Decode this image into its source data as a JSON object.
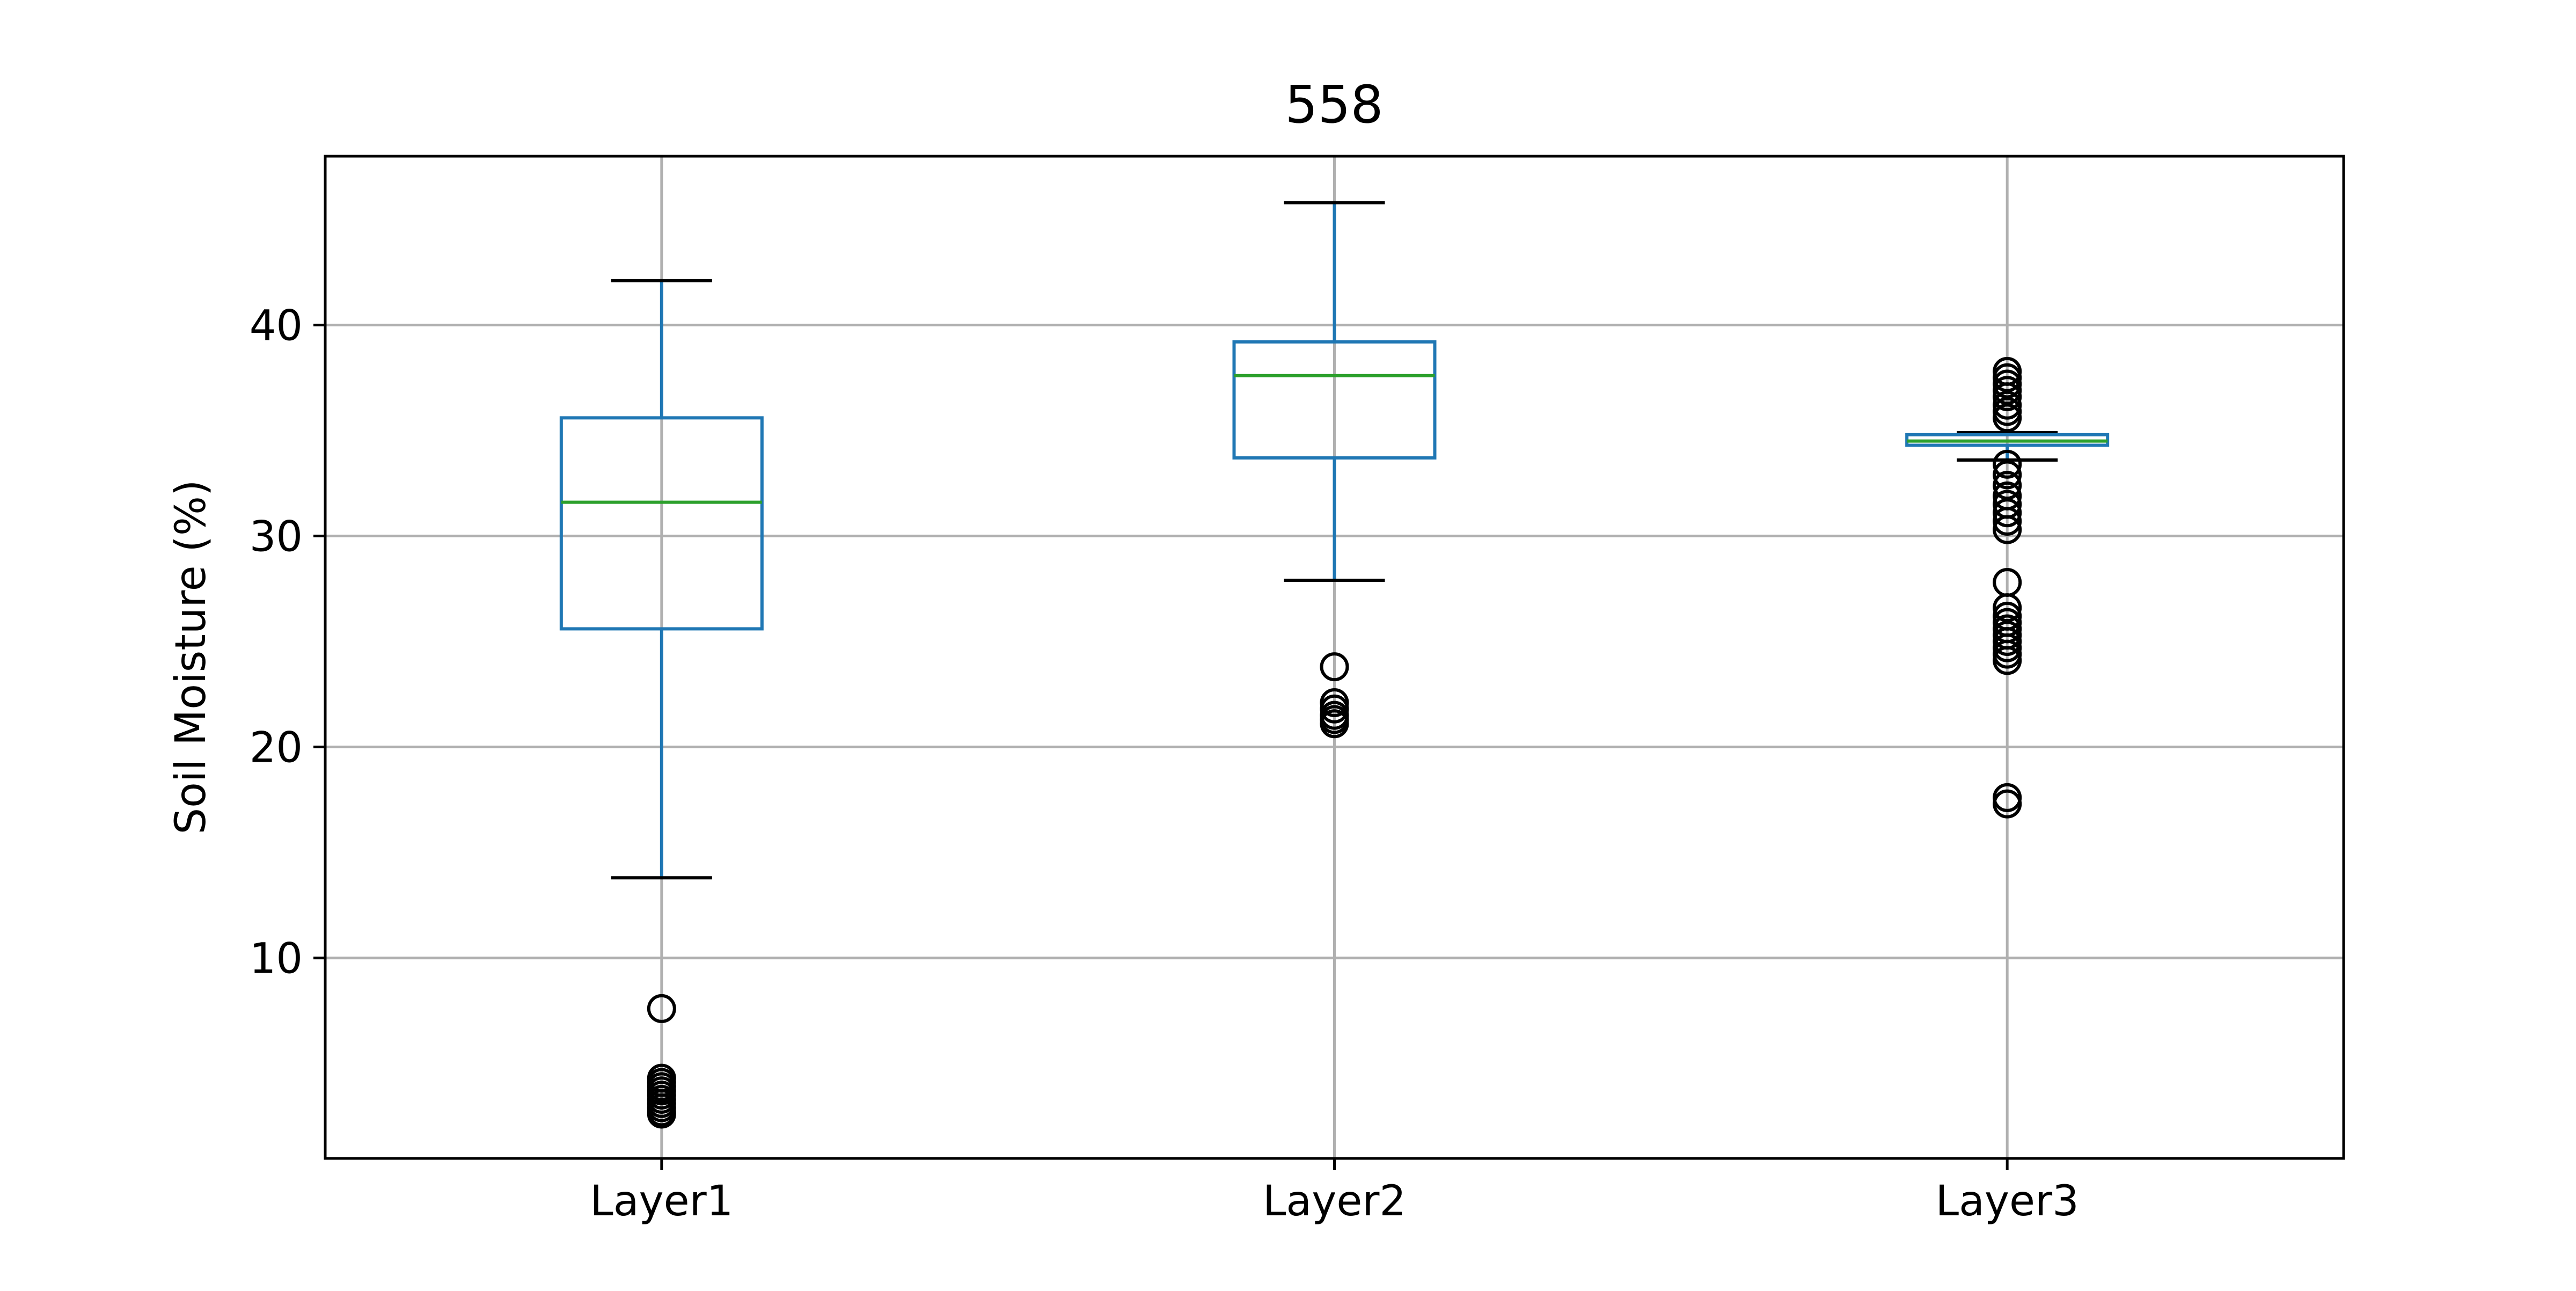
{
  "chart_data": {
    "type": "box",
    "title": "558",
    "xlabel": "",
    "ylabel": "Soil Moisture (%)",
    "categories": [
      "Layer1",
      "Layer2",
      "Layer3"
    ],
    "yticks": [
      10,
      20,
      30,
      40
    ],
    "ylim": [
      0.5,
      48
    ],
    "grid": true,
    "boxes": [
      {
        "category": "Layer1",
        "whisker_low": 13.8,
        "q1": 25.6,
        "median": 31.6,
        "q3": 35.6,
        "whisker_high": 42.1,
        "outliers": [
          7.6,
          4.3,
          4.1,
          3.9,
          3.7,
          3.5,
          3.3,
          3.1,
          2.9,
          2.7,
          2.6
        ]
      },
      {
        "category": "Layer2",
        "whisker_low": 27.9,
        "q1": 33.7,
        "median": 37.6,
        "q3": 39.2,
        "whisker_high": 45.8,
        "outliers": [
          23.8,
          22.1,
          21.8,
          21.5,
          21.3,
          21.1
        ]
      },
      {
        "category": "Layer3",
        "whisker_low": 33.6,
        "q1": 34.3,
        "median": 34.5,
        "q3": 34.8,
        "whisker_high": 34.9,
        "outliers": [
          37.8,
          37.5,
          37.2,
          36.9,
          36.6,
          36.2,
          35.9,
          35.6,
          33.4,
          32.9,
          32.4,
          31.9,
          31.5,
          31.1,
          30.7,
          30.3,
          27.8,
          26.6,
          26.2,
          25.9,
          25.6,
          25.3,
          25.0,
          24.7,
          24.4,
          24.1,
          17.6,
          17.3
        ]
      }
    ],
    "colors": {
      "box": "#1f77b4",
      "median": "#2ca02c",
      "whisker_cap": "#000000",
      "outlier": "#000000",
      "grid": "#b0b0b0",
      "axes": "#000000"
    }
  }
}
